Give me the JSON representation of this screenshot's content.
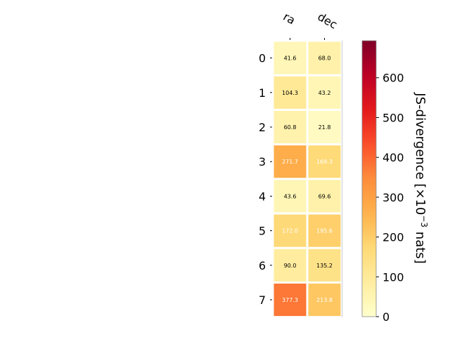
{
  "chart_data": {
    "type": "heatmap",
    "title": "",
    "columns": [
      "ra",
      "dec"
    ],
    "rows": [
      "0",
      "1",
      "2",
      "3",
      "4",
      "5",
      "6",
      "7"
    ],
    "values": [
      [
        41.6,
        68.0
      ],
      [
        104.3,
        43.2
      ],
      [
        60.8,
        21.8
      ],
      [
        271.7,
        169.3
      ],
      [
        43.6,
        69.6
      ],
      [
        172.0,
        195.6
      ],
      [
        90.0,
        135.2
      ],
      [
        377.3,
        213.8
      ]
    ],
    "cell_labels": [
      [
        "41.6",
        "68.0"
      ],
      [
        "104.3",
        "43.2"
      ],
      [
        "60.8",
        "21.8"
      ],
      [
        "271.7",
        "169.3"
      ],
      [
        "43.6",
        "69.6"
      ],
      [
        "172.0",
        "195.6"
      ],
      [
        "90.0",
        "135.2"
      ],
      [
        "377.3",
        "213.8"
      ]
    ],
    "colorbar": {
      "colormap": "YlOrRd",
      "vmin": 0,
      "vmax": 693,
      "ticks": [
        0,
        100,
        200,
        300,
        400,
        500,
        600
      ],
      "tick_labels": [
        "0",
        "100",
        "200",
        "300",
        "400",
        "500",
        "600"
      ],
      "label_prefix": "JS-divergence [×10",
      "label_exponent": "−3",
      "label_suffix": " nats]"
    },
    "grid": false,
    "legend": "none"
  }
}
